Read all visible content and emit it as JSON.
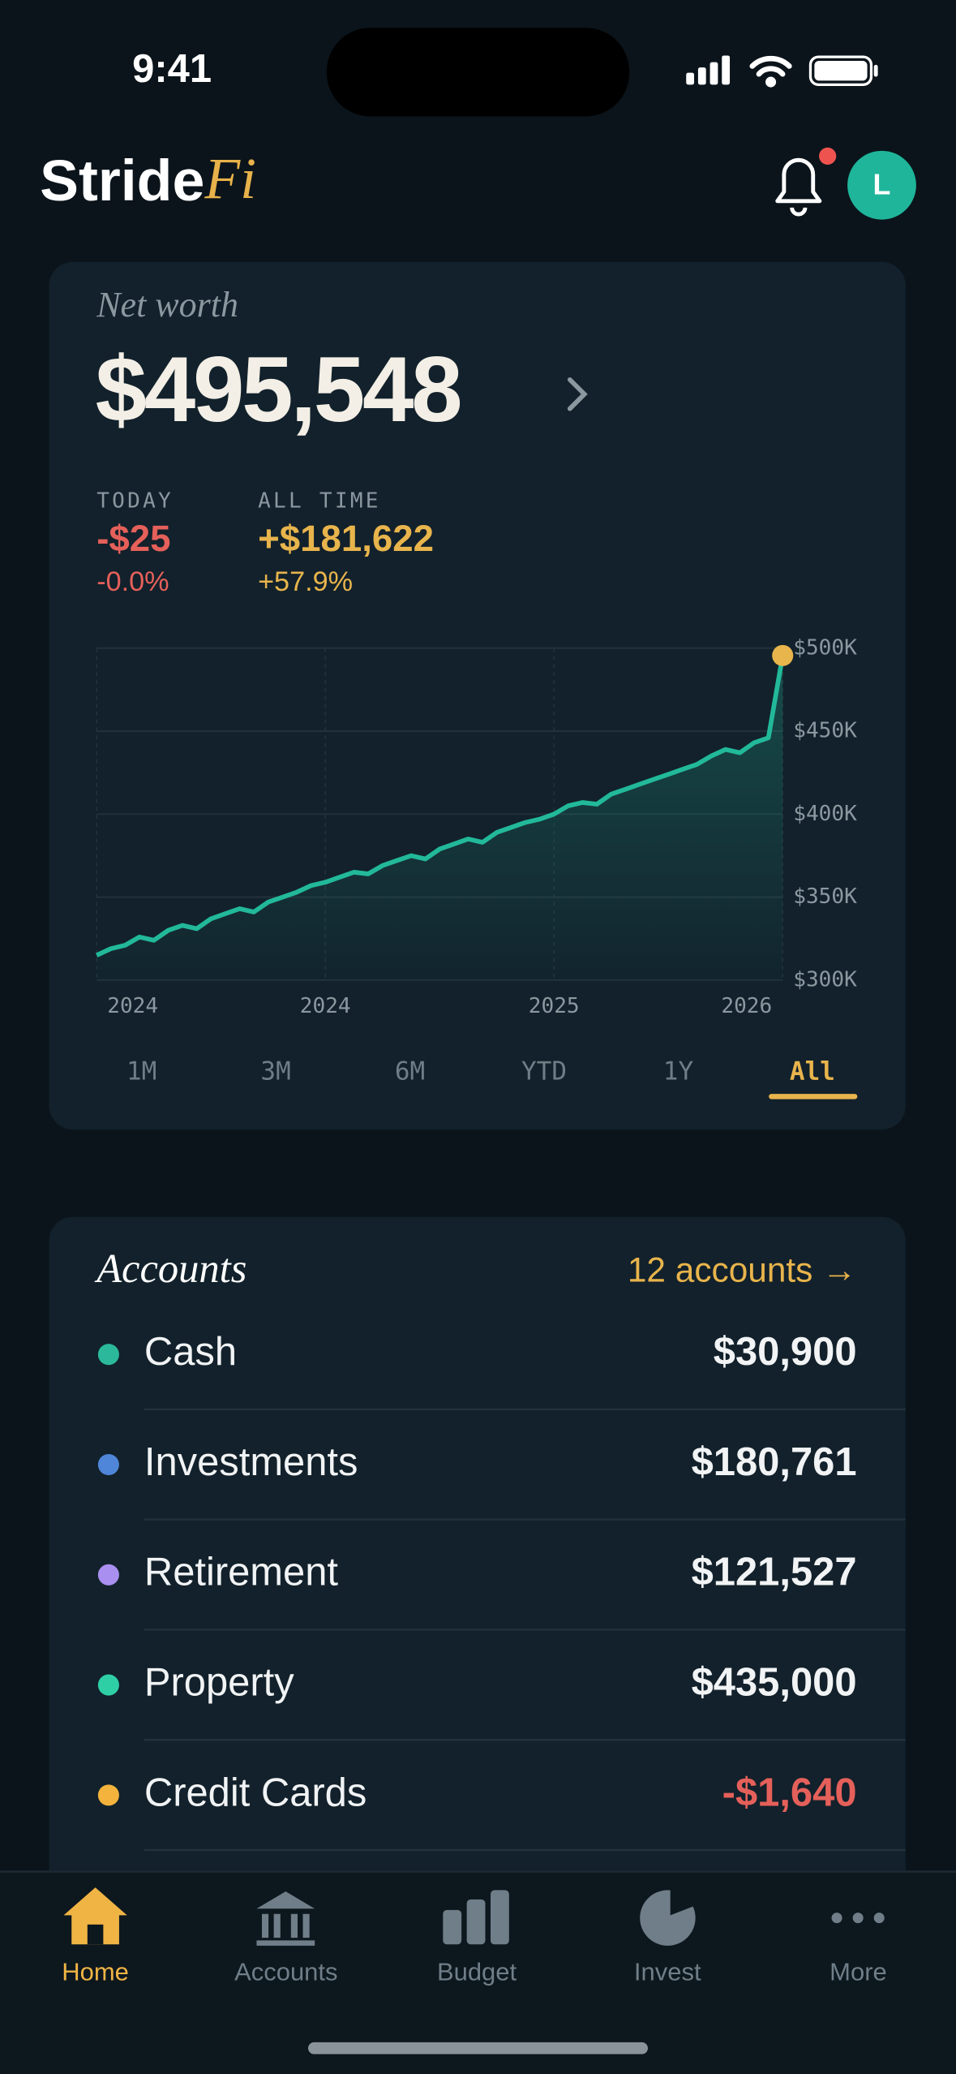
{
  "status_bar": {
    "time": "9:41"
  },
  "header": {
    "brand": "Stride",
    "brand_accent": "Fi",
    "avatar": "L"
  },
  "net_worth": {
    "label": "Net worth",
    "value": "$495,548",
    "today": {
      "label": "TODAY",
      "amount": "-$25",
      "percent": "-0.0%"
    },
    "all_time": {
      "label": "ALL TIME",
      "amount": "+$181,622",
      "percent": "+57.9%"
    }
  },
  "chart_data": {
    "type": "line",
    "color": "#22b99a",
    "highlight_color": "#e8b44c",
    "values": [
      315000,
      319000,
      321000,
      326000,
      324000,
      330000,
      333000,
      331000,
      337000,
      340000,
      343000,
      341000,
      347000,
      350000,
      353000,
      357000,
      359000,
      362000,
      365000,
      364000,
      369000,
      372000,
      375000,
      373000,
      379000,
      382000,
      385000,
      383000,
      389000,
      392000,
      395000,
      397000,
      400000,
      405000,
      407000,
      406000,
      412000,
      415000,
      418000,
      421000,
      424000,
      427000,
      430000,
      435000,
      439000,
      437000,
      443000,
      446000,
      495548
    ],
    "xlim": [
      0,
      48
    ],
    "xticks": [
      {
        "value": 0,
        "label": "2024"
      },
      {
        "value": 16,
        "label": "2024"
      },
      {
        "value": 32,
        "label": "2025"
      },
      {
        "value": 48,
        "label": "2026"
      }
    ],
    "ylim": [
      300000,
      500000
    ],
    "yticks": [
      {
        "value": 300000,
        "label": "$300K"
      },
      {
        "value": 350000,
        "label": "$350K"
      },
      {
        "value": 400000,
        "label": "$400K"
      },
      {
        "value": 450000,
        "label": "$450K"
      },
      {
        "value": 500000,
        "label": "$500K"
      }
    ],
    "grid": true
  },
  "range_tabs": {
    "items": [
      "1M",
      "3M",
      "6M",
      "YTD",
      "1Y",
      "All"
    ],
    "active": 5
  },
  "accounts": {
    "title": "Accounts",
    "link": "12 accounts →",
    "rows": [
      {
        "name": "Cash",
        "value": "$30,900",
        "color": "#2bb89b"
      },
      {
        "name": "Investments",
        "value": "$180,761",
        "color": "#4f86d9"
      },
      {
        "name": "Retirement",
        "value": "$121,527",
        "color": "#a98ff0"
      },
      {
        "name": "Property",
        "value": "$435,000",
        "color": "#2fcfa6"
      },
      {
        "name": "Credit Cards",
        "value": "-$1,640",
        "color": "#f3b33d"
      }
    ]
  },
  "nav": {
    "items": [
      "Home",
      "Accounts",
      "Budget",
      "Invest",
      "More"
    ],
    "active": 0
  }
}
